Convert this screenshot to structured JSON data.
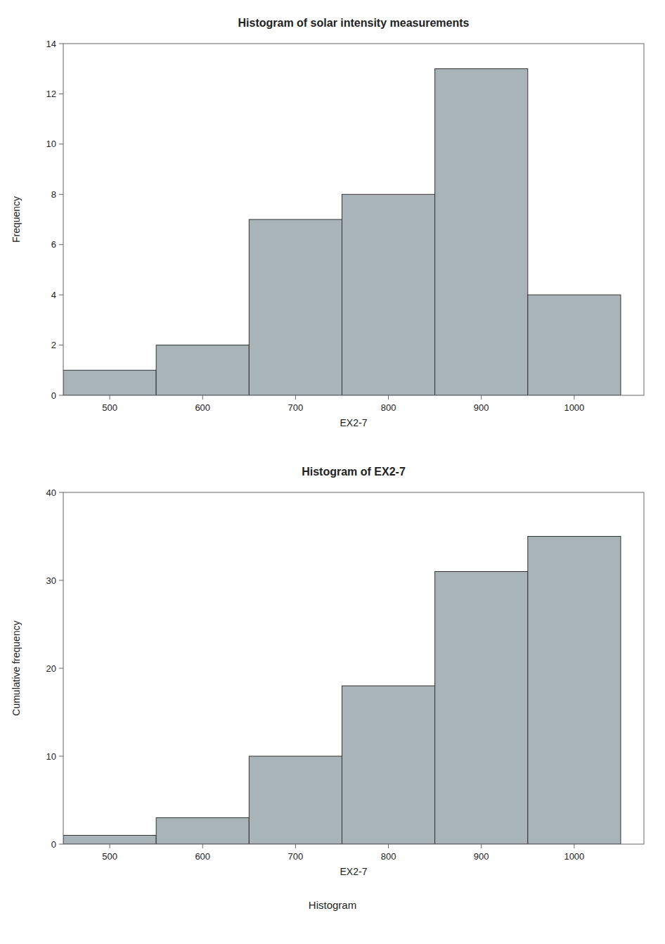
{
  "chart_data": [
    {
      "type": "histogram",
      "title": "Histogram of solar intensity measurements",
      "x_label": "EX2-7",
      "y_label": "Frequency",
      "bins": [
        450,
        550,
        650,
        750,
        850,
        950,
        1050
      ],
      "values": [
        1,
        2,
        7,
        8,
        13,
        4
      ],
      "color": "#a8b4b8",
      "xlim": [
        450,
        1075
      ],
      "xticks": [
        500,
        600,
        700,
        800,
        900,
        1000
      ],
      "ylim": [
        0,
        14
      ],
      "yticks": [
        0,
        2,
        4,
        6,
        8,
        10,
        12,
        14
      ]
    },
    {
      "type": "histogram",
      "title": "Histogram of EX2-7",
      "x_label": "EX2-7",
      "y_label": "Cumulative frequency",
      "bins": [
        450,
        550,
        650,
        750,
        850,
        950,
        1050
      ],
      "values": [
        1,
        3,
        10,
        18,
        31,
        35
      ],
      "color": "#a8b4b8",
      "xlim": [
        450,
        1075
      ],
      "xticks": [
        500,
        600,
        700,
        800,
        900,
        1000
      ],
      "ylim": [
        0,
        40
      ],
      "yticks": [
        0,
        10,
        20,
        30,
        40
      ],
      "annotations": [
        "Histogram"
      ]
    }
  ]
}
